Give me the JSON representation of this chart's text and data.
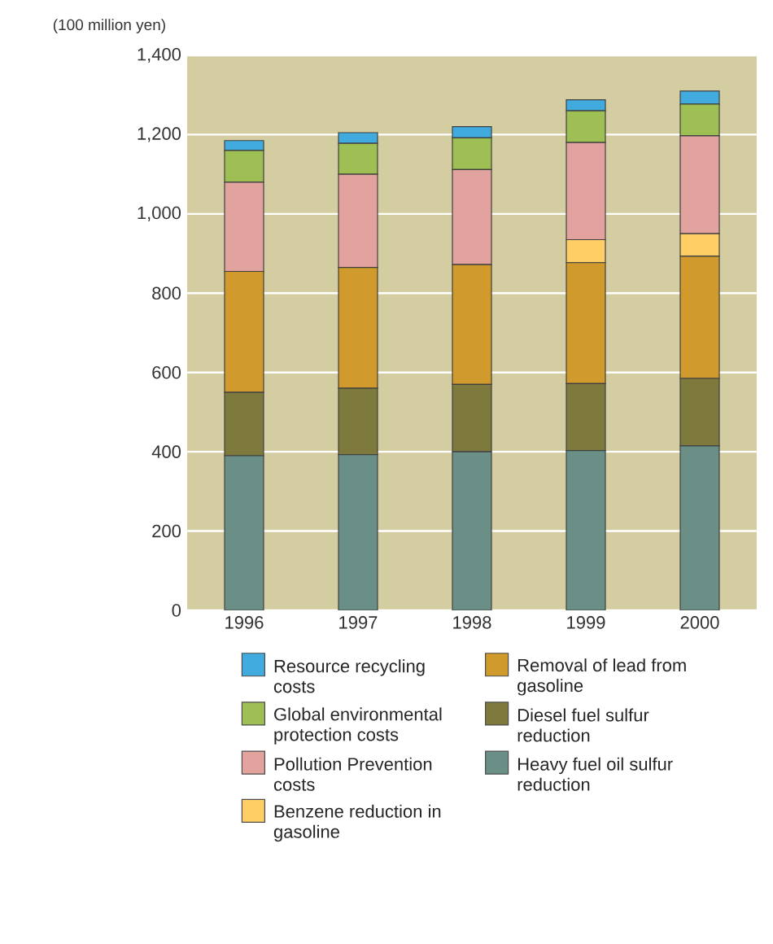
{
  "chart_data": {
    "type": "bar",
    "stacked": true,
    "ylabel": "(100 million yen)",
    "categories": [
      "1996",
      "1997",
      "1998",
      "1999",
      "2000"
    ],
    "ylim": [
      0,
      1400
    ],
    "yticks": [
      0,
      200,
      400,
      600,
      800,
      {
        "value": 1000,
        "label": "1,000"
      },
      {
        "value": 1200,
        "label": "1,200"
      },
      {
        "value": 1400,
        "label": "1,400"
      }
    ],
    "grid": "y",
    "legend": "bottom",
    "series": [
      {
        "name": "Heavy fuel oil sulfur reduction",
        "color": "#698f87",
        "values": [
          390,
          393,
          400,
          403,
          415
        ]
      },
      {
        "name": "Diesel fuel sulfur reduction",
        "color": "#7e7a3d",
        "values": [
          160,
          167,
          170,
          169,
          170
        ]
      },
      {
        "name": "Removal of lead from gasoline",
        "color": "#d09a2d",
        "values": [
          305,
          305,
          302,
          305,
          308
        ]
      },
      {
        "name": "Benzene reduction in gasoline",
        "color": "#ffcf66",
        "values": [
          0,
          0,
          0,
          58,
          57
        ]
      },
      {
        "name": "Pollution Prevention costs",
        "color": "#e2a29e",
        "values": [
          225,
          235,
          240,
          245,
          247
        ]
      },
      {
        "name": "Global environmental protection costs",
        "color": "#9dbf53",
        "values": [
          80,
          78,
          80,
          80,
          80
        ]
      },
      {
        "name": "Resource recycling costs",
        "color": "#41abe0",
        "values": [
          25,
          27,
          28,
          28,
          33
        ]
      }
    ]
  }
}
